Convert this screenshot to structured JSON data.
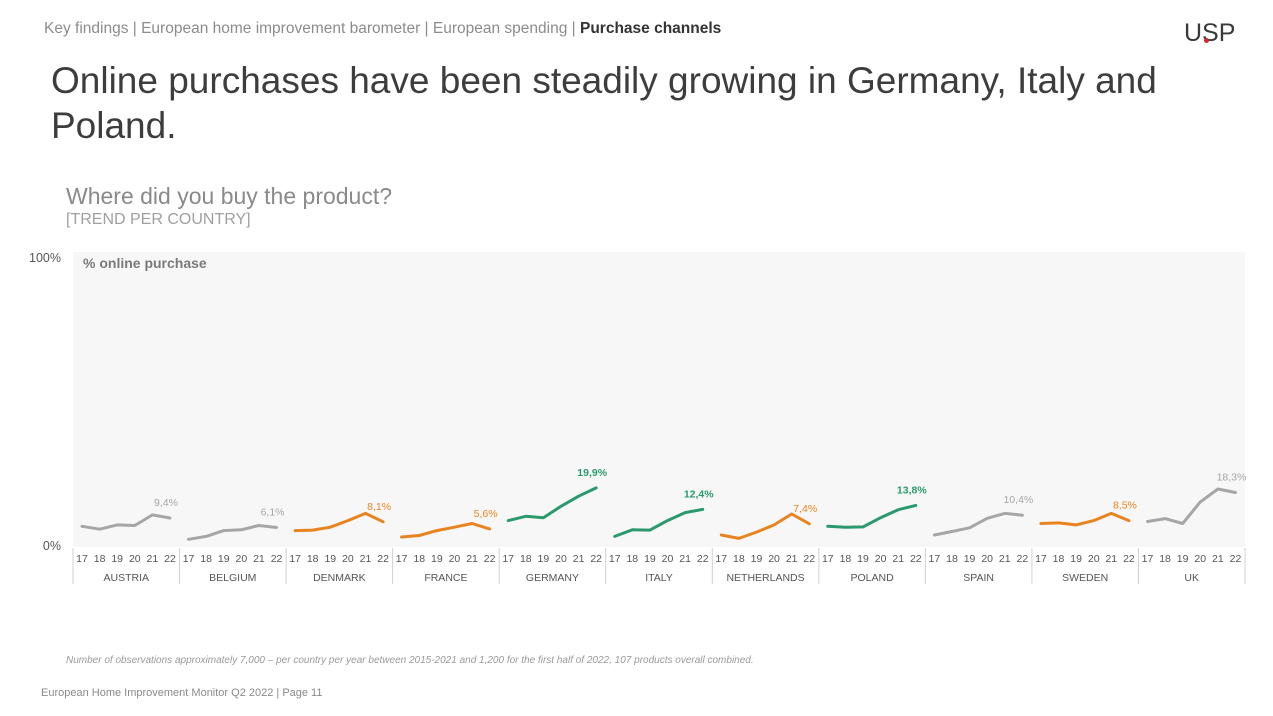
{
  "breadcrumb": {
    "items": [
      "Key findings",
      "European home improvement barometer",
      "European spending"
    ],
    "current": "Purchase channels",
    "separator": " | "
  },
  "logo": {
    "text": "USP"
  },
  "title": "Online purchases have been steadily growing in Germany, Italy and Poland.",
  "question": "Where did you buy the product?",
  "subquestion": "[TREND PER COUNTRY]",
  "colors": {
    "grey": "#a6a6a6",
    "orange": "#e8841f",
    "green": "#2a9a6e",
    "panel": "#f7f7f7"
  },
  "chart_data": {
    "type": "line",
    "title": "% online purchase",
    "ylim": [
      0,
      100
    ],
    "y_ticks": [
      "0%",
      "100%"
    ],
    "x": [
      "17",
      "18",
      "19",
      "20",
      "21",
      "22"
    ],
    "grid": false,
    "series": [
      {
        "name": "AUSTRIA",
        "color": "grey",
        "values": [
          6.5,
          5.5,
          7,
          6.8,
          10.5,
          9.4
        ],
        "label": "9,4%"
      },
      {
        "name": "BELGIUM",
        "color": "grey",
        "values": [
          2,
          3,
          5,
          5.3,
          6.8,
          6.1
        ],
        "label": "6,1%"
      },
      {
        "name": "DENMARK",
        "color": "orange",
        "values": [
          5,
          5.2,
          6.2,
          8.5,
          11,
          8.1
        ],
        "label": "8,1%"
      },
      {
        "name": "FRANCE",
        "color": "orange",
        "values": [
          2.8,
          3.3,
          5,
          6.2,
          7.5,
          5.6
        ],
        "label": "5,6%"
      },
      {
        "name": "GERMANY",
        "color": "green",
        "values": [
          8.5,
          10,
          9.5,
          13.5,
          17,
          19.9
        ],
        "label": "19,9%"
      },
      {
        "name": "ITALY",
        "color": "green",
        "values": [
          3,
          5.3,
          5.2,
          8.5,
          11.3,
          12.4
        ],
        "label": "12,4%"
      },
      {
        "name": "NETHERLANDS",
        "color": "orange",
        "values": [
          3.5,
          2.3,
          4.5,
          7,
          10.8,
          7.4
        ],
        "label": "7,4%"
      },
      {
        "name": "POLAND",
        "color": "green",
        "values": [
          6.5,
          6.2,
          6.3,
          9.5,
          12.3,
          13.8
        ],
        "label": "13,8%"
      },
      {
        "name": "SPAIN",
        "color": "grey",
        "values": [
          3.5,
          4.7,
          6,
          9.3,
          11,
          10.4
        ],
        "label": "10,4%"
      },
      {
        "name": "SWEDEN",
        "color": "orange",
        "values": [
          7.5,
          7.7,
          7,
          8.5,
          11,
          8.5
        ],
        "label": "8,5%"
      },
      {
        "name": "UK",
        "color": "grey",
        "values": [
          8.2,
          9.2,
          7.5,
          15,
          19.5,
          18.3
        ],
        "label": "18,3%"
      }
    ]
  },
  "footnote": "Number of observations approximately 7,000 – per country per year between 2015-2021 and 1,200 for the first half of 2022, 107 products overall combined.",
  "footer": "European Home Improvement Monitor Q2 2022 | Page 11"
}
